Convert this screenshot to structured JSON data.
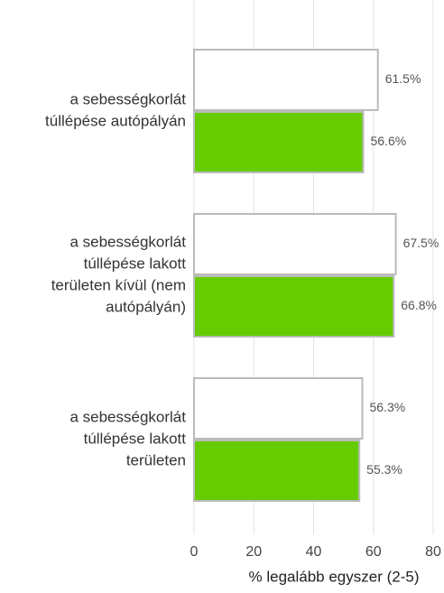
{
  "chart_data": {
    "type": "bar",
    "orientation": "horizontal",
    "categories": [
      [
        "a sebességkorlát",
        "túllépése autópályán"
      ],
      [
        "a sebességkorlát",
        "túllépése lakott",
        "területen kívül (nem",
        "autópályán)"
      ],
      [
        "a sebességkorlát",
        "túllépése lakott",
        "területen"
      ]
    ],
    "series": [
      {
        "color": "#ffffff",
        "values": [
          61.5,
          67.5,
          56.3
        ],
        "value_labels": [
          "61.5%",
          "67.5%",
          "56.3%"
        ]
      },
      {
        "color": "#66cc00",
        "values": [
          56.6,
          66.8,
          55.3
        ],
        "value_labels": [
          "56.6%",
          "66.8%",
          "55.3%"
        ]
      }
    ],
    "xlabel": "% legalább egyszer (2-5)",
    "xlim": [
      0,
      80
    ],
    "xticks": [
      0,
      20,
      40,
      60,
      80
    ],
    "grid": true
  }
}
